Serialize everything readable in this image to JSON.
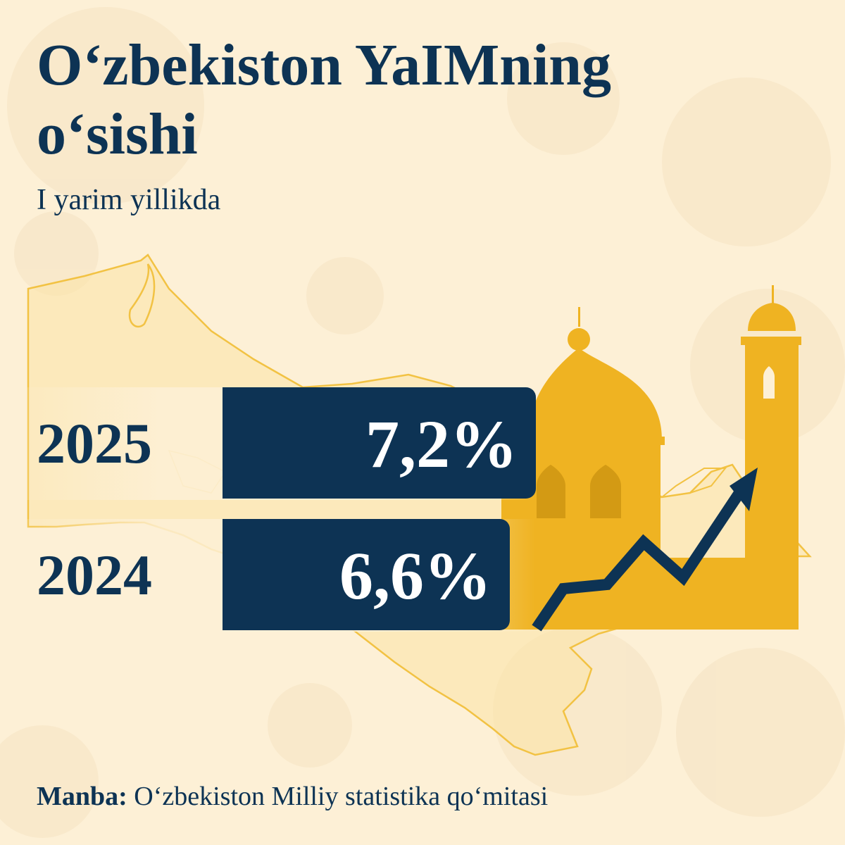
{
  "title": "O‘zbekiston YaIMning o‘sishi",
  "subtitle": "I yarim yillikda",
  "chart_data": {
    "type": "bar",
    "orientation": "horizontal",
    "categories": [
      "2025",
      "2024"
    ],
    "values": [
      7.2,
      6.6
    ],
    "value_labels": [
      "7,2%",
      "6,6%"
    ],
    "unit": "%",
    "xlabel": "",
    "ylabel": ""
  },
  "source": {
    "label": "Manba:",
    "text": "O‘zbekiston Milliy statistika qo‘mitasi"
  },
  "colors": {
    "background": "#fdf0d6",
    "primary": "#0d3354",
    "accent": "#efb322",
    "accent_dark": "#d39a14",
    "map_outline": "#f2c243"
  },
  "decorations": {
    "map": "uzbekistan-map-outline",
    "monument": "mosque-and-minaret-silhouette",
    "arrow": "growth-trend-arrow-icon"
  }
}
